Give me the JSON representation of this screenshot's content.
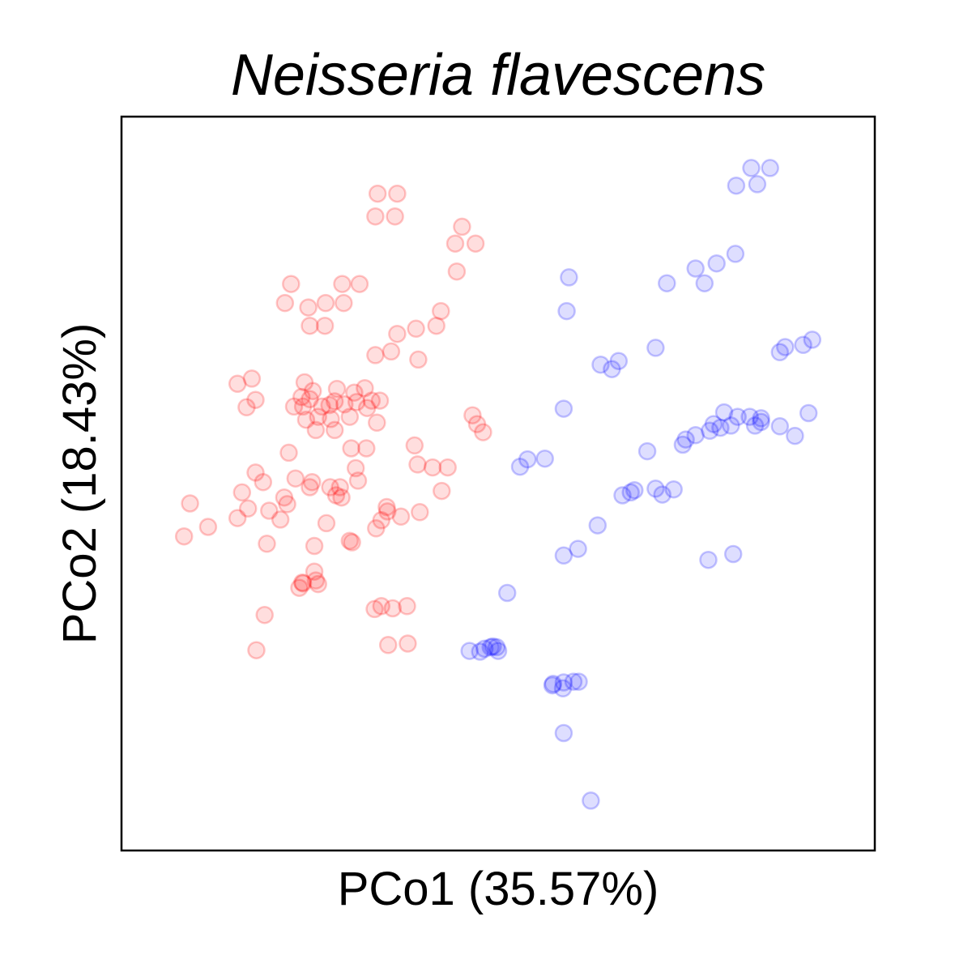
{
  "chart_data": {
    "type": "scatter",
    "title": "Neisseria flavescens",
    "xlabel": "PCo1 (35.57%)",
    "ylabel": "PCo2 (18.43%)",
    "xlim": [
      0,
      100
    ],
    "ylim": [
      0,
      100
    ],
    "grid": false,
    "ticks": false,
    "legend": "none",
    "colors": {
      "group_a": "#ff0000",
      "group_b": "#0000ff"
    },
    "series": [
      {
        "color": "#ff0000",
        "points": [
          [
            34.0,
            89.5
          ],
          [
            36.6,
            89.5
          ],
          [
            33.7,
            86.4
          ],
          [
            36.3,
            86.4
          ],
          [
            45.2,
            85.0
          ],
          [
            44.3,
            82.7
          ],
          [
            47.0,
            82.7
          ],
          [
            44.5,
            78.9
          ],
          [
            22.5,
            77.2
          ],
          [
            29.3,
            77.2
          ],
          [
            31.6,
            77.2
          ],
          [
            21.7,
            74.6
          ],
          [
            27.1,
            74.6
          ],
          [
            29.5,
            74.6
          ],
          [
            24.8,
            74.0
          ],
          [
            27.0,
            71.5
          ],
          [
            25.0,
            71.5
          ],
          [
            42.4,
            73.5
          ],
          [
            41.8,
            71.5
          ],
          [
            39.1,
            71.1
          ],
          [
            36.6,
            70.4
          ],
          [
            35.8,
            68.0
          ],
          [
            33.7,
            67.5
          ],
          [
            39.4,
            66.9
          ],
          [
            15.4,
            63.6
          ],
          [
            28.6,
            62.9
          ],
          [
            17.3,
            64.3
          ],
          [
            17.8,
            61.4
          ],
          [
            16.6,
            60.4
          ],
          [
            32.3,
            63.0
          ],
          [
            31.2,
            61.1
          ],
          [
            24.3,
            63.8
          ],
          [
            25.4,
            62.6
          ],
          [
            23.9,
            61.8
          ],
          [
            25.0,
            61.5
          ],
          [
            24.1,
            60.5
          ],
          [
            22.9,
            60.5
          ],
          [
            29.6,
            60.8
          ],
          [
            28.3,
            61.2
          ],
          [
            27.6,
            60.7
          ],
          [
            26.6,
            60.5
          ],
          [
            27.8,
            58.8
          ],
          [
            26.1,
            59.1
          ],
          [
            24.5,
            58.7
          ],
          [
            33.2,
            61.3
          ],
          [
            34.3,
            61.3
          ],
          [
            30.9,
            62.4
          ],
          [
            32.6,
            60.3
          ],
          [
            30.3,
            59.1
          ],
          [
            33.9,
            58.3
          ],
          [
            46.6,
            59.3
          ],
          [
            47.2,
            58.1
          ],
          [
            48.0,
            57.0
          ],
          [
            38.9,
            55.2
          ],
          [
            25.8,
            57.3
          ],
          [
            28.3,
            57.3
          ],
          [
            22.2,
            54.2
          ],
          [
            30.5,
            54.8
          ],
          [
            32.5,
            54.8
          ],
          [
            25.3,
            50.2
          ],
          [
            23.1,
            50.7
          ],
          [
            18.8,
            50.2
          ],
          [
            17.8,
            51.5
          ],
          [
            25.0,
            49.5
          ],
          [
            29.0,
            49.5
          ],
          [
            21.6,
            48.1
          ],
          [
            29.2,
            48.1
          ],
          [
            22.0,
            47.2
          ],
          [
            27.7,
            49.5
          ],
          [
            31.1,
            52.1
          ],
          [
            39.3,
            52.6
          ],
          [
            43.3,
            52.2
          ],
          [
            41.3,
            52.2
          ],
          [
            42.5,
            49.0
          ],
          [
            31.4,
            50.4
          ],
          [
            28.5,
            48.4
          ],
          [
            16.0,
            48.8
          ],
          [
            15.4,
            45.3
          ],
          [
            16.8,
            46.6
          ],
          [
            19.6,
            46.3
          ],
          [
            21.1,
            45.1
          ],
          [
            35.2,
            46.8
          ],
          [
            39.6,
            46.1
          ],
          [
            35.3,
            46.2
          ],
          [
            27.2,
            44.6
          ],
          [
            30.3,
            42.2
          ],
          [
            33.8,
            43.9
          ],
          [
            30.6,
            42.0
          ],
          [
            37.1,
            45.5
          ],
          [
            34.5,
            45.0
          ],
          [
            9.1,
            47.3
          ],
          [
            11.5,
            44.1
          ],
          [
            8.3,
            42.8
          ],
          [
            19.3,
            41.8
          ],
          [
            25.6,
            38.0
          ],
          [
            25.6,
            41.5
          ],
          [
            24.1,
            36.4
          ],
          [
            25.8,
            36.8
          ],
          [
            26.1,
            36.3
          ],
          [
            23.6,
            35.8
          ],
          [
            24.0,
            36.5
          ],
          [
            34.5,
            33.3
          ],
          [
            36.0,
            33.0
          ],
          [
            37.9,
            33.3
          ],
          [
            33.6,
            32.9
          ],
          [
            19.0,
            32.1
          ],
          [
            17.9,
            27.3
          ],
          [
            35.4,
            28.0
          ],
          [
            38.0,
            28.2
          ]
        ]
      },
      {
        "color": "#0000ff",
        "points": [
          [
            83.6,
            93.0
          ],
          [
            86.1,
            93.0
          ],
          [
            81.6,
            90.6
          ],
          [
            84.4,
            90.8
          ],
          [
            81.5,
            81.3
          ],
          [
            79.0,
            80.0
          ],
          [
            76.2,
            79.3
          ],
          [
            77.4,
            77.3
          ],
          [
            72.4,
            77.3
          ],
          [
            59.4,
            78.1
          ],
          [
            59.1,
            73.5
          ],
          [
            88.1,
            68.6
          ],
          [
            90.5,
            68.9
          ],
          [
            91.7,
            69.6
          ],
          [
            87.4,
            67.9
          ],
          [
            70.9,
            68.5
          ],
          [
            63.6,
            66.2
          ],
          [
            66.0,
            66.7
          ],
          [
            65.1,
            65.6
          ],
          [
            58.7,
            60.2
          ],
          [
            81.8,
            59.1
          ],
          [
            83.4,
            59.1
          ],
          [
            84.9,
            58.9
          ],
          [
            80.9,
            57.9
          ],
          [
            79.5,
            57.6
          ],
          [
            78.1,
            57.2
          ],
          [
            76.2,
            56.6
          ],
          [
            74.9,
            56.0
          ],
          [
            87.4,
            57.8
          ],
          [
            89.4,
            56.5
          ],
          [
            80.0,
            59.7
          ],
          [
            78.6,
            58.1
          ],
          [
            84.1,
            57.9
          ],
          [
            84.9,
            58.4
          ],
          [
            91.2,
            59.6
          ],
          [
            74.5,
            55.3
          ],
          [
            69.8,
            54.4
          ],
          [
            56.2,
            53.4
          ],
          [
            53.9,
            53.3
          ],
          [
            52.9,
            52.3
          ],
          [
            68.1,
            49.1
          ],
          [
            70.9,
            49.3
          ],
          [
            73.3,
            49.2
          ],
          [
            67.6,
            48.8
          ],
          [
            66.5,
            48.4
          ],
          [
            71.8,
            48.5
          ],
          [
            63.2,
            44.3
          ],
          [
            60.6,
            41.1
          ],
          [
            58.7,
            40.2
          ],
          [
            77.9,
            39.6
          ],
          [
            81.2,
            40.4
          ],
          [
            51.2,
            35.1
          ],
          [
            46.2,
            27.2
          ],
          [
            48.2,
            27.5
          ],
          [
            49.3,
            27.8
          ],
          [
            49.8,
            27.7
          ],
          [
            50.0,
            27.2
          ],
          [
            47.6,
            27.1
          ],
          [
            49.0,
            27.7
          ],
          [
            60.0,
            23.0
          ],
          [
            57.2,
            22.5
          ],
          [
            58.7,
            22.9
          ],
          [
            60.7,
            23.0
          ],
          [
            57.3,
            22.7
          ],
          [
            58.6,
            22.1
          ],
          [
            58.7,
            16.0
          ],
          [
            62.3,
            6.8
          ]
        ]
      }
    ]
  }
}
